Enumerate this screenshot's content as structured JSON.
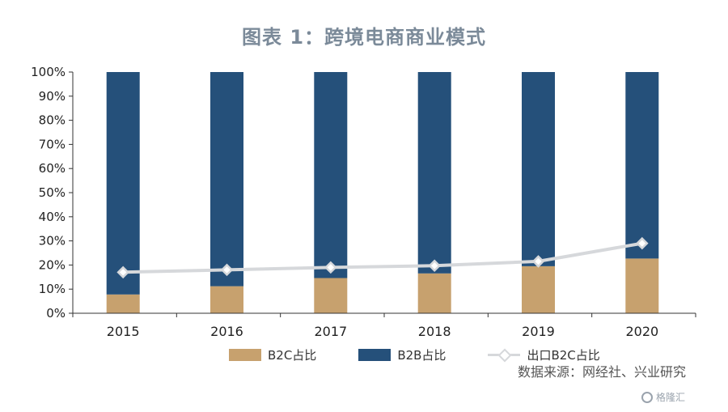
{
  "chart_data": {
    "type": "bar",
    "title": "图表 1：跨境电商商业模式",
    "categories": [
      "2015",
      "2016",
      "2017",
      "2018",
      "2019",
      "2020"
    ],
    "series": [
      {
        "name": "B2C占比",
        "kind": "stacked-bar",
        "color": "#c7a16e",
        "values": [
          7.8,
          11.2,
          14.6,
          16.5,
          19.5,
          22.7
        ]
      },
      {
        "name": "B2B占比",
        "kind": "stacked-bar",
        "color": "#25507a",
        "values": [
          92.2,
          88.8,
          85.4,
          83.5,
          80.5,
          77.3
        ]
      },
      {
        "name": "出口B2C占比",
        "kind": "line",
        "color": "#d6d8db",
        "values": [
          17.0,
          18.0,
          19.0,
          19.7,
          21.5,
          29.0
        ]
      }
    ],
    "y_ticks": [
      "0%",
      "10%",
      "20%",
      "30%",
      "40%",
      "50%",
      "60%",
      "70%",
      "80%",
      "90%",
      "100%"
    ],
    "ylim": [
      0,
      100
    ],
    "xlabel": "",
    "ylabel": "",
    "grid": false,
    "legend_position": "bottom"
  },
  "source": "数据来源：网经社、兴业研究",
  "watermark": "格隆汇"
}
